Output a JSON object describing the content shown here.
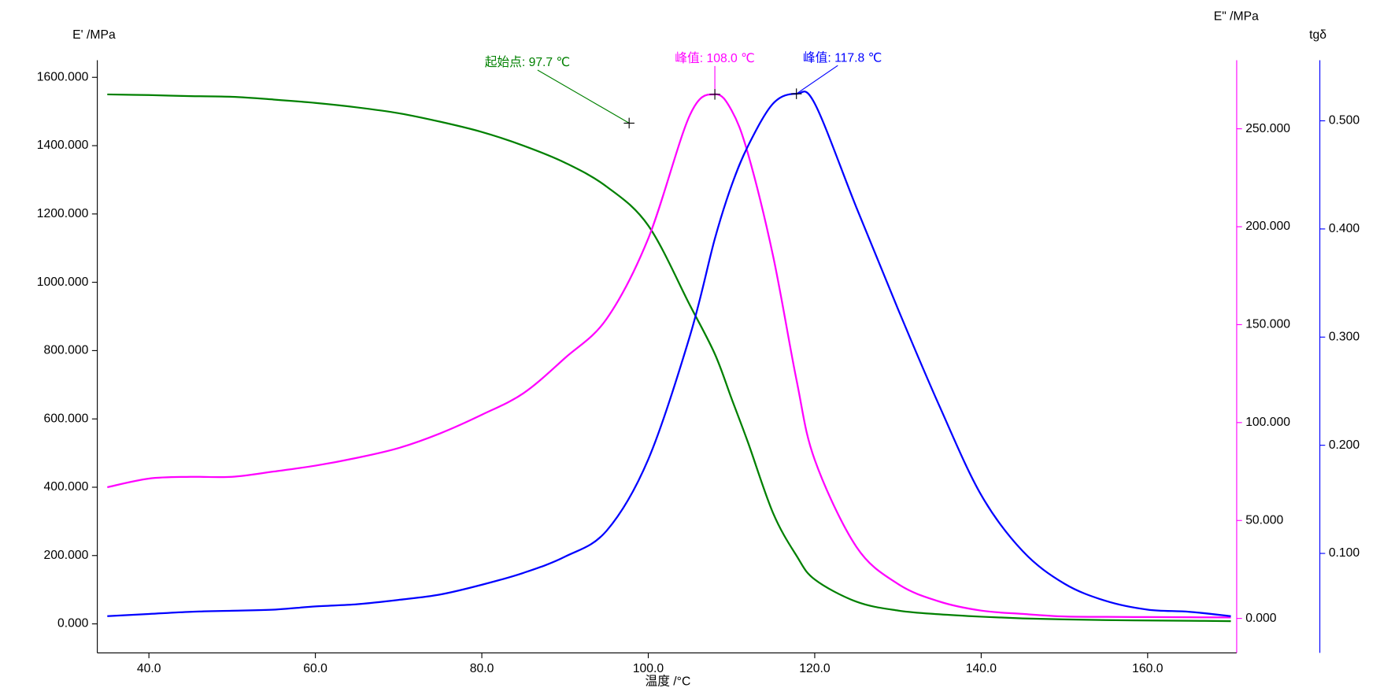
{
  "chart_data": {
    "type": "line",
    "x_label": "温度 /°C",
    "y_label": "E' /MPa",
    "y2_label": "E\" /MPa",
    "y3_label": "tgδ",
    "x": [
      35,
      40,
      45,
      50,
      55,
      60,
      65,
      70,
      75,
      80,
      85,
      90,
      95,
      100,
      105,
      108,
      110,
      112,
      115,
      117.8,
      120,
      125,
      130,
      135,
      140,
      145,
      150,
      155,
      160,
      165,
      170
    ],
    "series": [
      {
        "color": "#008000",
        "axis": "y",
        "values": [
          1550,
          1548,
          1545,
          1543,
          1535,
          1525,
          1512,
          1495,
          1470,
          1440,
          1400,
          1350,
          1280,
          1166,
          933,
          790,
          660,
          530,
          324,
          200,
          130,
          65,
          39,
          28,
          21,
          16,
          13,
          11,
          10,
          9,
          8
        ]
      },
      {
        "color": "#ff00ff",
        "axis": "y2",
        "values": [
          67,
          71.4,
          72.3,
          72.3,
          75,
          78,
          82,
          87,
          94.5,
          104,
          115,
          133,
          153,
          194,
          257,
          267.6,
          259.5,
          237,
          185,
          122,
          81,
          36.6,
          17.6,
          8.6,
          4,
          2.3,
          1,
          0.8,
          0.7,
          0.6,
          0.5
        ]
      },
      {
        "color": "#0000ff",
        "axis": "y3",
        "values": [
          0.042,
          0.044,
          0.046,
          0.047,
          0.048,
          0.051,
          0.053,
          0.057,
          0.062,
          0.071,
          0.082,
          0.097,
          0.121,
          0.187,
          0.301,
          0.391,
          0.44,
          0.477,
          0.516,
          0.525,
          0.516,
          0.42,
          0.326,
          0.236,
          0.154,
          0.102,
          0.072,
          0.056,
          0.048,
          0.046,
          0.042
        ]
      }
    ],
    "xlim": [
      33.8,
      170.7
    ],
    "xticks": [
      {
        "value": 40,
        "label": "40.0"
      },
      {
        "value": 60,
        "label": "60.0"
      },
      {
        "value": 80,
        "label": "80.0"
      },
      {
        "value": 100,
        "label": "100.0"
      },
      {
        "value": 120,
        "label": "120.0"
      },
      {
        "value": 140,
        "label": "140.0"
      },
      {
        "value": 160,
        "label": "160.0"
      }
    ],
    "ylim": [
      -85,
      1650
    ],
    "yticks": [
      {
        "value": 0,
        "label": "0.000"
      },
      {
        "value": 200,
        "label": "200.000"
      },
      {
        "value": 400,
        "label": "400.000"
      },
      {
        "value": 600,
        "label": "600.000"
      },
      {
        "value": 800,
        "label": "800.000"
      },
      {
        "value": 1000,
        "label": "1000.000"
      },
      {
        "value": 1200,
        "label": "1200.000"
      },
      {
        "value": 1400,
        "label": "1400.000"
      },
      {
        "value": 1600,
        "label": "1600.000"
      }
    ],
    "y2lim": [
      -17.6,
      285
    ],
    "y2ticks": [
      {
        "value": 0,
        "label": "0.000"
      },
      {
        "value": 50,
        "label": "50.000"
      },
      {
        "value": 100,
        "label": "100.000"
      },
      {
        "value": 150,
        "label": "150.000"
      },
      {
        "value": 200,
        "label": "200.000"
      },
      {
        "value": 250,
        "label": "250.000"
      }
    ],
    "y3lim": [
      0.008,
      0.556
    ],
    "y3ticks": [
      {
        "value": 0.1,
        "label": "0.100"
      },
      {
        "value": 0.2,
        "label": "0.200"
      },
      {
        "value": 0.3,
        "label": "0.300"
      },
      {
        "value": 0.4,
        "label": "0.400"
      },
      {
        "value": 0.5,
        "label": "0.500"
      }
    ],
    "annotations": [
      {
        "text": "起始点: 97.7 ℃",
        "x": 97.7,
        "y": 1466,
        "axis": "y",
        "color": "#008000"
      },
      {
        "text": "峰值: 108.0 ℃",
        "x": 108.0,
        "y": 267.6,
        "axis": "y2",
        "color": "#ff00ff"
      },
      {
        "text": "峰值: 117.8 ℃",
        "x": 117.8,
        "y": 0.525,
        "axis": "y3",
        "color": "#0000ff"
      }
    ]
  }
}
